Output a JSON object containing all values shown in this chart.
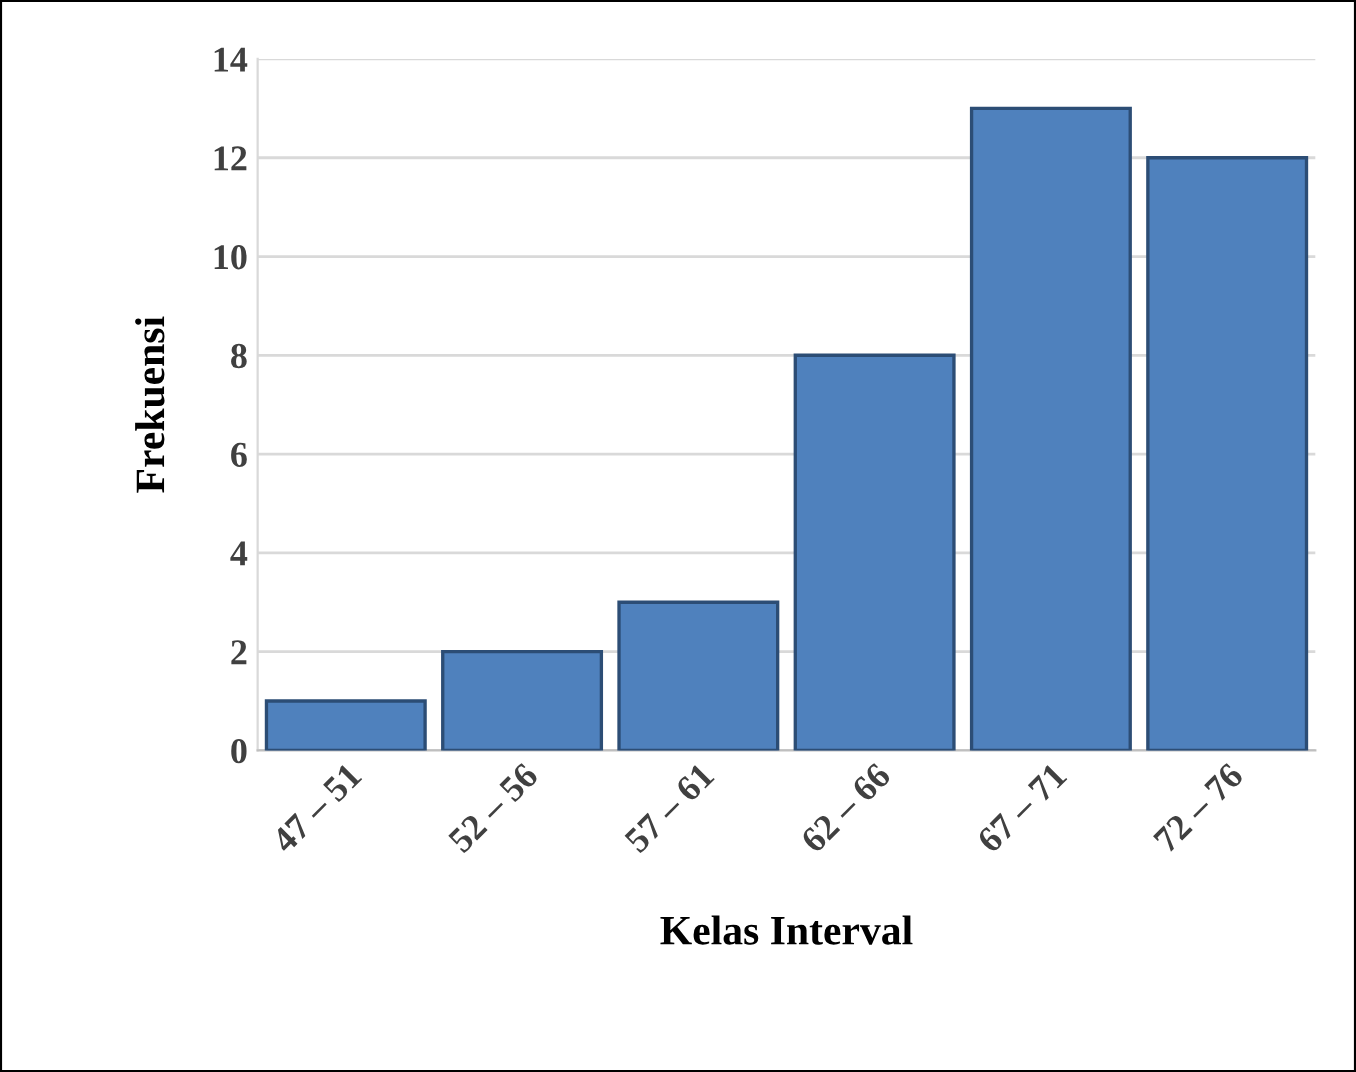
{
  "chart_data": {
    "type": "bar",
    "xlabel": "Kelas Interval",
    "ylabel": "Frekuensi",
    "categories": [
      "47 – 51",
      "52 – 56",
      "57 – 61",
      "62 – 66",
      "67 – 71",
      "72 – 76"
    ],
    "values": [
      1,
      2,
      3,
      8,
      13,
      12
    ],
    "color": "#4f81bd",
    "ylim": [
      0,
      14
    ],
    "yticks": [
      0,
      2,
      4,
      6,
      8,
      10,
      12,
      14
    ],
    "grid": "y",
    "legend": false
  }
}
